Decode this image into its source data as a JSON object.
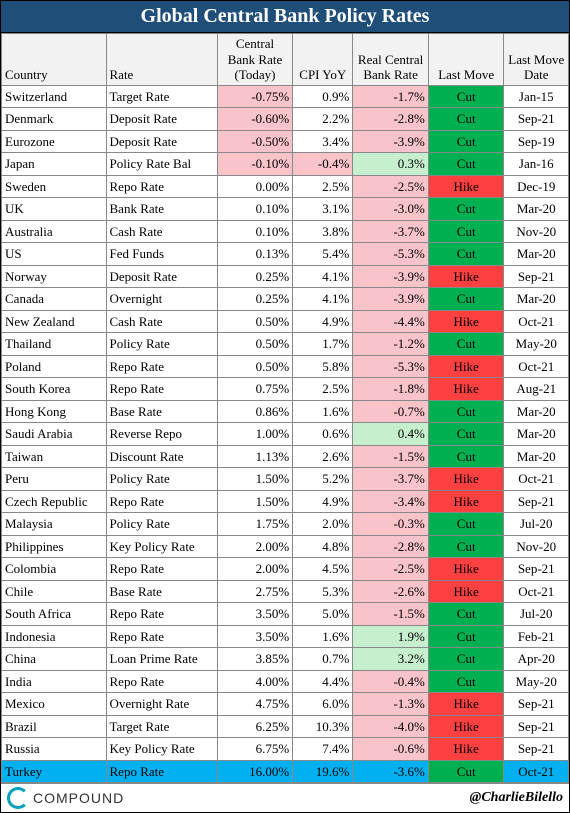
{
  "title": "Global Central Bank Policy Rates",
  "columns": [
    "Country",
    "Rate",
    "Central Bank Rate (Today)",
    "CPI YoY",
    "Real Central Bank Rate",
    "Last Move",
    "Last Move Date"
  ],
  "colors": {
    "title_bg": "#1f4e79",
    "neg_fill": "#f8c4c9",
    "pos_fill": "#c6efce",
    "cut_bg": "#00b050",
    "hike_bg": "#ff4040",
    "highlight_bg": "#00b0f0"
  },
  "rows": [
    {
      "country": "Switzerland",
      "rate": "Target Rate",
      "cbr": "-0.75%",
      "cpi": "0.9%",
      "real": "-1.7%",
      "move": "Cut",
      "date": "Jan-15"
    },
    {
      "country": "Denmark",
      "rate": "Deposit Rate",
      "cbr": "-0.60%",
      "cpi": "2.2%",
      "real": "-2.8%",
      "move": "Cut",
      "date": "Sep-21"
    },
    {
      "country": "Eurozone",
      "rate": "Deposit Rate",
      "cbr": "-0.50%",
      "cpi": "3.4%",
      "real": "-3.9%",
      "move": "Cut",
      "date": "Sep-19"
    },
    {
      "country": "Japan",
      "rate": "Policy Rate Bal",
      "cbr": "-0.10%",
      "cpi": "-0.4%",
      "real": "0.3%",
      "move": "Cut",
      "date": "Jan-16"
    },
    {
      "country": "Sweden",
      "rate": "Repo Rate",
      "cbr": "0.00%",
      "cpi": "2.5%",
      "real": "-2.5%",
      "move": "Hike",
      "date": "Dec-19"
    },
    {
      "country": "UK",
      "rate": "Bank Rate",
      "cbr": "0.10%",
      "cpi": "3.1%",
      "real": "-3.0%",
      "move": "Cut",
      "date": "Mar-20"
    },
    {
      "country": "Australia",
      "rate": "Cash Rate",
      "cbr": "0.10%",
      "cpi": "3.8%",
      "real": "-3.7%",
      "move": "Cut",
      "date": "Nov-20"
    },
    {
      "country": "US",
      "rate": "Fed Funds",
      "cbr": "0.13%",
      "cpi": "5.4%",
      "real": "-5.3%",
      "move": "Cut",
      "date": "Mar-20"
    },
    {
      "country": "Norway",
      "rate": "Deposit Rate",
      "cbr": "0.25%",
      "cpi": "4.1%",
      "real": "-3.9%",
      "move": "Hike",
      "date": "Sep-21"
    },
    {
      "country": "Canada",
      "rate": "Overnight",
      "cbr": "0.25%",
      "cpi": "4.1%",
      "real": "-3.9%",
      "move": "Cut",
      "date": "Mar-20"
    },
    {
      "country": "New Zealand",
      "rate": "Cash Rate",
      "cbr": "0.50%",
      "cpi": "4.9%",
      "real": "-4.4%",
      "move": "Hike",
      "date": "Oct-21"
    },
    {
      "country": "Thailand",
      "rate": "Policy Rate",
      "cbr": "0.50%",
      "cpi": "1.7%",
      "real": "-1.2%",
      "move": "Cut",
      "date": "May-20"
    },
    {
      "country": "Poland",
      "rate": "Repo Rate",
      "cbr": "0.50%",
      "cpi": "5.8%",
      "real": "-5.3%",
      "move": "Hike",
      "date": "Oct-21"
    },
    {
      "country": "South Korea",
      "rate": "Repo Rate",
      "cbr": "0.75%",
      "cpi": "2.5%",
      "real": "-1.8%",
      "move": "Hike",
      "date": "Aug-21"
    },
    {
      "country": "Hong Kong",
      "rate": "Base Rate",
      "cbr": "0.86%",
      "cpi": "1.6%",
      "real": "-0.7%",
      "move": "Cut",
      "date": "Mar-20"
    },
    {
      "country": "Saudi Arabia",
      "rate": "Reverse Repo",
      "cbr": "1.00%",
      "cpi": "0.6%",
      "real": "0.4%",
      "move": "Cut",
      "date": "Mar-20"
    },
    {
      "country": "Taiwan",
      "rate": "Discount Rate",
      "cbr": "1.13%",
      "cpi": "2.6%",
      "real": "-1.5%",
      "move": "Cut",
      "date": "Mar-20"
    },
    {
      "country": "Peru",
      "rate": "Policy Rate",
      "cbr": "1.50%",
      "cpi": "5.2%",
      "real": "-3.7%",
      "move": "Hike",
      "date": "Oct-21"
    },
    {
      "country": "Czech Republic",
      "rate": "Repo Rate",
      "cbr": "1.50%",
      "cpi": "4.9%",
      "real": "-3.4%",
      "move": "Hike",
      "date": "Sep-21"
    },
    {
      "country": "Malaysia",
      "rate": "Policy Rate",
      "cbr": "1.75%",
      "cpi": "2.0%",
      "real": "-0.3%",
      "move": "Cut",
      "date": "Jul-20"
    },
    {
      "country": "Philippines",
      "rate": "Key Policy Rate",
      "cbr": "2.00%",
      "cpi": "4.8%",
      "real": "-2.8%",
      "move": "Cut",
      "date": "Nov-20"
    },
    {
      "country": "Colombia",
      "rate": "Repo Rate",
      "cbr": "2.00%",
      "cpi": "4.5%",
      "real": "-2.5%",
      "move": "Hike",
      "date": "Sep-21"
    },
    {
      "country": "Chile",
      "rate": "Base Rate",
      "cbr": "2.75%",
      "cpi": "5.3%",
      "real": "-2.6%",
      "move": "Hike",
      "date": "Oct-21"
    },
    {
      "country": "South Africa",
      "rate": "Repo Rate",
      "cbr": "3.50%",
      "cpi": "5.0%",
      "real": "-1.5%",
      "move": "Cut",
      "date": "Jul-20"
    },
    {
      "country": "Indonesia",
      "rate": "Repo Rate",
      "cbr": "3.50%",
      "cpi": "1.6%",
      "real": "1.9%",
      "move": "Cut",
      "date": "Feb-21"
    },
    {
      "country": "China",
      "rate": "Loan Prime Rate",
      "cbr": "3.85%",
      "cpi": "0.7%",
      "real": "3.2%",
      "move": "Cut",
      "date": "Apr-20"
    },
    {
      "country": "India",
      "rate": "Repo Rate",
      "cbr": "4.00%",
      "cpi": "4.4%",
      "real": "-0.4%",
      "move": "Cut",
      "date": "May-20"
    },
    {
      "country": "Mexico",
      "rate": "Overnight Rate",
      "cbr": "4.75%",
      "cpi": "6.0%",
      "real": "-1.3%",
      "move": "Hike",
      "date": "Sep-21"
    },
    {
      "country": "Brazil",
      "rate": "Target Rate",
      "cbr": "6.25%",
      "cpi": "10.3%",
      "real": "-4.0%",
      "move": "Hike",
      "date": "Sep-21"
    },
    {
      "country": "Russia",
      "rate": "Key Policy Rate",
      "cbr": "6.75%",
      "cpi": "7.4%",
      "real": "-0.6%",
      "move": "Hike",
      "date": "Sep-21"
    },
    {
      "country": "Turkey",
      "rate": "Repo Rate",
      "cbr": "16.00%",
      "cpi": "19.6%",
      "real": "-3.6%",
      "move": "Cut",
      "date": "Oct-21",
      "highlight": true
    }
  ],
  "footer": {
    "brand": "COMPOUND",
    "handle": "@CharlieBilello"
  }
}
